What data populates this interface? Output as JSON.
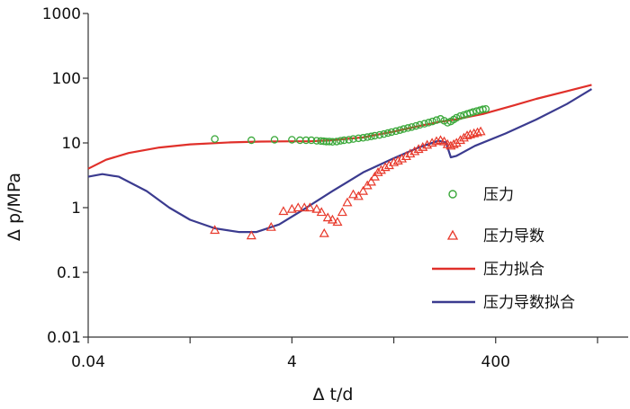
{
  "chart_data": {
    "type": "scatter",
    "xlabel": "Δ t/d",
    "ylabel": "Δ p/MPa",
    "x_scale": "log",
    "y_scale": "log",
    "xlim": [
      0.04,
      8000
    ],
    "ylim": [
      0.01,
      1000
    ],
    "x_tick_labels": [
      "0.04",
      "4",
      "400"
    ],
    "x_ticks": [
      0.04,
      4,
      400
    ],
    "x_minor_ticks": [
      0.4,
      40,
      4000
    ],
    "y_tick_labels": [
      "0.01",
      "0.1",
      "1",
      "10",
      "100",
      "1000"
    ],
    "y_ticks": [
      0.01,
      0.1,
      1,
      10,
      100,
      1000
    ],
    "grid": false,
    "legend_position": "right",
    "series": [
      {
        "name": "压力",
        "kind": "marker-circle",
        "color": "#3aa83a",
        "points": [
          [
            0.7,
            11.5
          ],
          [
            1.6,
            11
          ],
          [
            2.7,
            11.2
          ],
          [
            4.0,
            11.2
          ],
          [
            4.8,
            11
          ],
          [
            5.5,
            11
          ],
          [
            6.2,
            11
          ],
          [
            7.0,
            10.8
          ],
          [
            7.7,
            10.7
          ],
          [
            8.2,
            10.6
          ],
          [
            8.7,
            10.5
          ],
          [
            9.3,
            10.5
          ],
          [
            10.0,
            10.4
          ],
          [
            11.0,
            10.5
          ],
          [
            12.0,
            10.8
          ],
          [
            13.0,
            11
          ],
          [
            14.5,
            11.2
          ],
          [
            16,
            11.5
          ],
          [
            18,
            11.8
          ],
          [
            20,
            12
          ],
          [
            22,
            12.3
          ],
          [
            24,
            12.6
          ],
          [
            26,
            12.9
          ],
          [
            29,
            13.3
          ],
          [
            32,
            13.7
          ],
          [
            35,
            14.2
          ],
          [
            38,
            14.7
          ],
          [
            42,
            15.2
          ],
          [
            46,
            15.8
          ],
          [
            50,
            16.4
          ],
          [
            55,
            17
          ],
          [
            60,
            17.6
          ],
          [
            66,
            18.3
          ],
          [
            72,
            19
          ],
          [
            80,
            19.8
          ],
          [
            88,
            20.6
          ],
          [
            96,
            21.5
          ],
          [
            105,
            22.5
          ],
          [
            115,
            23.5
          ],
          [
            125,
            22
          ],
          [
            135,
            20.5
          ],
          [
            145,
            21.5
          ],
          [
            155,
            23
          ],
          [
            165,
            24.5
          ],
          [
            180,
            26
          ],
          [
            195,
            27
          ],
          [
            210,
            28
          ],
          [
            225,
            29
          ],
          [
            240,
            30
          ],
          [
            260,
            31
          ],
          [
            280,
            32
          ],
          [
            300,
            33
          ],
          [
            320,
            33.5
          ]
        ]
      },
      {
        "name": "压力导数",
        "kind": "marker-triangle",
        "color": "#e8382a",
        "points": [
          [
            0.7,
            0.45
          ],
          [
            1.6,
            0.37
          ],
          [
            2.5,
            0.5
          ],
          [
            3.3,
            0.88
          ],
          [
            4.0,
            0.95
          ],
          [
            4.6,
            1.0
          ],
          [
            5.3,
            1.0
          ],
          [
            6.0,
            1.0
          ],
          [
            7.0,
            0.95
          ],
          [
            7.8,
            0.85
          ],
          [
            8.3,
            0.4
          ],
          [
            9.0,
            0.7
          ],
          [
            10.0,
            0.65
          ],
          [
            11.2,
            0.6
          ],
          [
            12.5,
            0.85
          ],
          [
            14,
            1.2
          ],
          [
            16,
            1.6
          ],
          [
            18,
            1.5
          ],
          [
            20,
            1.8
          ],
          [
            22,
            2.2
          ],
          [
            24,
            2.5
          ],
          [
            26,
            3.0
          ],
          [
            28,
            3.5
          ],
          [
            30,
            3.8
          ],
          [
            33,
            4.2
          ],
          [
            36,
            4.5
          ],
          [
            40,
            5.0
          ],
          [
            44,
            5.3
          ],
          [
            48,
            5.7
          ],
          [
            53,
            6.2
          ],
          [
            58,
            6.8
          ],
          [
            64,
            7.4
          ],
          [
            70,
            8.0
          ],
          [
            77,
            8.6
          ],
          [
            85,
            9.3
          ],
          [
            95,
            10.0
          ],
          [
            105,
            10.6
          ],
          [
            115,
            11
          ],
          [
            125,
            10.5
          ],
          [
            135,
            9.5
          ],
          [
            145,
            9
          ],
          [
            155,
            9.5
          ],
          [
            165,
            10
          ],
          [
            180,
            11
          ],
          [
            195,
            12
          ],
          [
            210,
            13
          ],
          [
            225,
            13.5
          ],
          [
            245,
            14
          ],
          [
            265,
            14.5
          ],
          [
            285,
            15
          ]
        ]
      },
      {
        "name": "压力拟合",
        "kind": "line",
        "color": "#e0302a",
        "points": [
          [
            0.04,
            4.0
          ],
          [
            0.06,
            5.5
          ],
          [
            0.1,
            7.0
          ],
          [
            0.2,
            8.5
          ],
          [
            0.4,
            9.5
          ],
          [
            1,
            10.2
          ],
          [
            2,
            10.5
          ],
          [
            4,
            10.6
          ],
          [
            6,
            10.6
          ],
          [
            10,
            11.0
          ],
          [
            20,
            12.2
          ],
          [
            40,
            15
          ],
          [
            80,
            19
          ],
          [
            120,
            21.5
          ],
          [
            160,
            23
          ],
          [
            300,
            28
          ],
          [
            600,
            38
          ],
          [
            1000,
            48
          ],
          [
            2000,
            63
          ],
          [
            3500,
            79
          ]
        ]
      },
      {
        "name": "压力导数拟合",
        "kind": "line",
        "color": "#3b3b8f",
        "points": [
          [
            0.04,
            3.0
          ],
          [
            0.055,
            3.3
          ],
          [
            0.08,
            3.0
          ],
          [
            0.15,
            1.8
          ],
          [
            0.25,
            1.0
          ],
          [
            0.4,
            0.65
          ],
          [
            0.7,
            0.48
          ],
          [
            1.2,
            0.42
          ],
          [
            1.8,
            0.42
          ],
          [
            3,
            0.55
          ],
          [
            5,
            0.9
          ],
          [
            10,
            1.8
          ],
          [
            20,
            3.5
          ],
          [
            40,
            5.8
          ],
          [
            70,
            8.5
          ],
          [
            110,
            10.8
          ],
          [
            130,
            10.2
          ],
          [
            145,
            6.0
          ],
          [
            165,
            6.3
          ],
          [
            250,
            9.0
          ],
          [
            500,
            14
          ],
          [
            1000,
            23
          ],
          [
            2000,
            40
          ],
          [
            3500,
            68
          ]
        ]
      }
    ]
  }
}
